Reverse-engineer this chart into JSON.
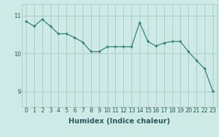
{
  "x": [
    0,
    1,
    2,
    3,
    4,
    5,
    6,
    7,
    8,
    9,
    10,
    11,
    12,
    13,
    14,
    15,
    16,
    17,
    18,
    19,
    20,
    21,
    22,
    23
  ],
  "y": [
    10.85,
    10.72,
    10.9,
    10.72,
    10.52,
    10.52,
    10.42,
    10.3,
    10.05,
    10.05,
    10.18,
    10.18,
    10.18,
    10.18,
    10.82,
    10.32,
    10.2,
    10.28,
    10.32,
    10.32,
    10.05,
    9.82,
    9.6,
    9.02
  ],
  "line_color": "#2a7d74",
  "marker": "+",
  "marker_size": 3.5,
  "marker_lw": 1.0,
  "bg_color": "#ceeae7",
  "grid_color": "#a8ccc9",
  "xlabel": "Humidex (Indice chaleur)",
  "xlabel_fontsize": 7.5,
  "yticks": [
    9,
    10,
    11
  ],
  "xticks": [
    0,
    1,
    2,
    3,
    4,
    5,
    6,
    7,
    8,
    9,
    10,
    11,
    12,
    13,
    14,
    15,
    16,
    17,
    18,
    19,
    20,
    21,
    22,
    23
  ],
  "ylim": [
    8.6,
    11.3
  ],
  "xlim": [
    -0.5,
    23.5
  ],
  "tick_fontsize": 6.0
}
